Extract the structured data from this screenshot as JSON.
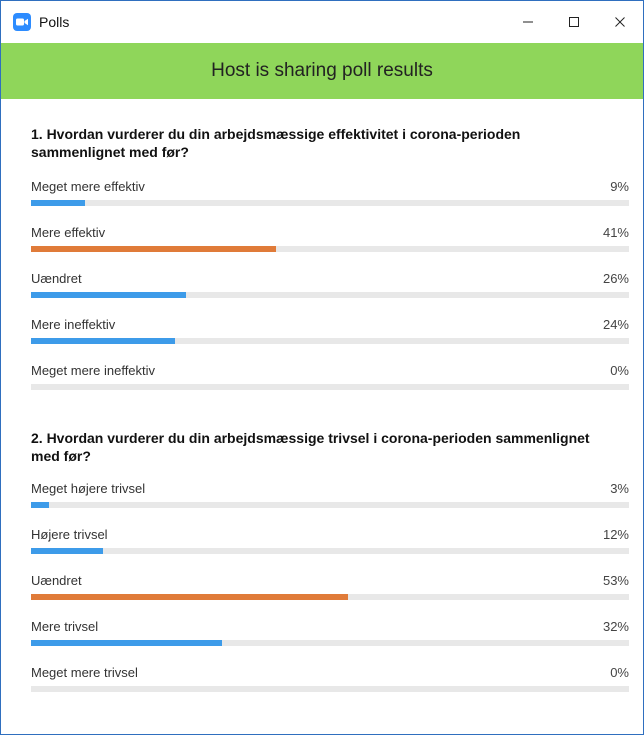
{
  "window": {
    "title": "Polls",
    "minimize": "—",
    "maximize": "☐",
    "close": "✕"
  },
  "banner": {
    "text": "Host is sharing poll results"
  },
  "colors": {
    "blue": "#3d9be9",
    "orange": "#e07b39",
    "banner": "#8fd65a"
  },
  "questions": [
    {
      "text": "1. Hvordan vurderer du din arbejdsmæssige effektivitet i corona-perioden sammenlignet med før?",
      "options": [
        {
          "label": "Meget mere effektiv",
          "percent": 9,
          "percent_text": "9%",
          "highlight": false
        },
        {
          "label": "Mere effektiv",
          "percent": 41,
          "percent_text": "41%",
          "highlight": true
        },
        {
          "label": "Uændret",
          "percent": 26,
          "percent_text": "26%",
          "highlight": false
        },
        {
          "label": "Mere ineffektiv",
          "percent": 24,
          "percent_text": "24%",
          "highlight": false
        },
        {
          "label": "Meget mere ineffektiv",
          "percent": 0,
          "percent_text": "0%",
          "highlight": false
        }
      ]
    },
    {
      "text": "2. Hvordan vurderer du din arbejdsmæssige trivsel i corona-perioden sammenlignet med før?",
      "options": [
        {
          "label": "Meget højere trivsel",
          "percent": 3,
          "percent_text": "3%",
          "highlight": false
        },
        {
          "label": "Højere trivsel",
          "percent": 12,
          "percent_text": "12%",
          "highlight": false
        },
        {
          "label": "Uændret",
          "percent": 53,
          "percent_text": "53%",
          "highlight": true
        },
        {
          "label": "Mere trivsel",
          "percent": 32,
          "percent_text": "32%",
          "highlight": false
        },
        {
          "label": "Meget mere trivsel",
          "percent": 0,
          "percent_text": "0%",
          "highlight": false
        }
      ]
    }
  ]
}
